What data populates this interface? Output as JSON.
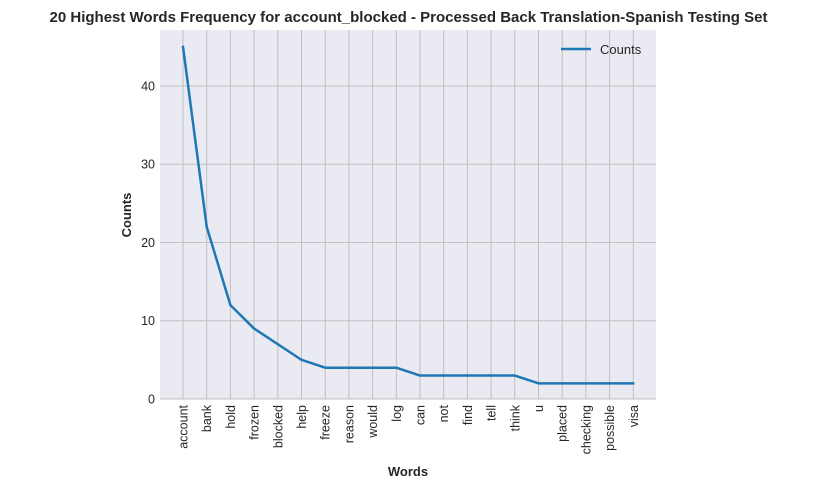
{
  "chart_data": {
    "type": "line",
    "title": "20 Highest Words Frequency for account_blocked - Processed Back Translation-Spanish Testing Set",
    "xlabel": "Words",
    "ylabel": "Counts",
    "categories": [
      "account",
      "bank",
      "hold",
      "frozen",
      "blocked",
      "help",
      "freeze",
      "reason",
      "would",
      "log",
      "can",
      "not",
      "find",
      "tell",
      "think",
      "u",
      "placed",
      "checking",
      "possible",
      "visa"
    ],
    "series": [
      {
        "name": "Counts",
        "values": [
          45,
          22,
          12,
          9,
          7,
          5,
          4,
          4,
          4,
          4,
          3,
          3,
          3,
          3,
          3,
          2,
          2,
          2,
          2,
          2
        ],
        "color": "#1f77b4"
      }
    ],
    "ylim": [
      0,
      47.15
    ],
    "yticks": [
      0,
      10,
      20,
      30,
      40
    ],
    "grid": true,
    "legend_position": "top-right",
    "background": "#eaeaf2",
    "grid_color": "#c0c0c0"
  }
}
